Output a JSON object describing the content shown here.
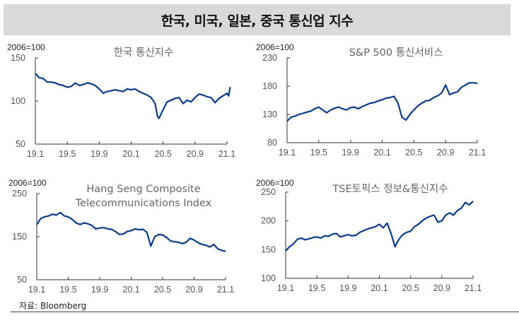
{
  "title": "한국, 미국, 일본, 중국 통신업 지수",
  "source": "자료: Bloomberg",
  "line_color": "#0b3a8c",
  "chart_data": [
    {
      "type": "line",
      "title": [
        "한국 통신지수"
      ],
      "unit_label": "2006=100",
      "xlabel": "",
      "ylabel": "",
      "xticks": [
        "19.1",
        "19.5",
        "19.9",
        "20.1",
        "20.5",
        "20.9",
        "21.1"
      ],
      "xtick_months": [
        0,
        4,
        8,
        12,
        16,
        20,
        24
      ],
      "yticks": [
        50,
        100,
        150
      ],
      "ylim": [
        50,
        150
      ],
      "x_months": [
        0,
        0.5,
        1,
        1.5,
        2,
        2.5,
        3,
        3.5,
        4,
        4.5,
        5,
        5.5,
        6,
        6.5,
        7,
        7.5,
        8,
        8.5,
        9,
        9.5,
        10,
        10.5,
        11,
        11.5,
        12,
        12.5,
        13,
        13.5,
        14,
        14.5,
        15,
        15.3,
        15.5,
        16,
        16.5,
        17,
        17.5,
        18,
        18.5,
        19,
        19.5,
        20,
        20.5,
        21,
        21.5,
        22,
        22.5,
        23,
        23.5,
        24,
        24.2,
        24.4
      ],
      "values": [
        132,
        127,
        126,
        122,
        122,
        121,
        119,
        118,
        116,
        117,
        121,
        118,
        119,
        121,
        120,
        118,
        114,
        109,
        111,
        112,
        113,
        112,
        111,
        114,
        113,
        114,
        111,
        109,
        107,
        104,
        97,
        82,
        80,
        90,
        99,
        101,
        103,
        104,
        97,
        101,
        99,
        104,
        108,
        107,
        105,
        104,
        98,
        103,
        106,
        109,
        106,
        116
      ]
    },
    {
      "type": "line",
      "title": [
        "S&P 500 통신서비스"
      ],
      "unit_label": "2006=100",
      "xlabel": "",
      "ylabel": "",
      "xticks": [
        "19.1",
        "19.5",
        "19.9",
        "20.1",
        "20.5",
        "20.9",
        "21.1"
      ],
      "xtick_months": [
        0,
        4,
        8,
        12,
        16,
        20,
        24
      ],
      "yticks": [
        80,
        130,
        180,
        230
      ],
      "ylim": [
        80,
        230
      ],
      "x_months": [
        0,
        0.5,
        1,
        1.5,
        2,
        2.5,
        3,
        3.5,
        4,
        4.5,
        5,
        5.5,
        6,
        6.5,
        7,
        7.5,
        8,
        8.5,
        9,
        9.5,
        10,
        10.5,
        11,
        11.5,
        12,
        12.5,
        13,
        13.5,
        14,
        14.5,
        15,
        15.5,
        16,
        16.5,
        17,
        17.5,
        18,
        18.5,
        19,
        19.5,
        20,
        20.5,
        21,
        21.5,
        22,
        22.5,
        23,
        23.5,
        24
      ],
      "values": [
        118,
        125,
        127,
        130,
        132,
        134,
        136,
        140,
        143,
        138,
        133,
        138,
        141,
        143,
        140,
        138,
        142,
        143,
        140,
        144,
        147,
        150,
        151,
        154,
        156,
        159,
        160,
        162,
        150,
        125,
        120,
        130,
        138,
        145,
        150,
        154,
        155,
        160,
        163,
        168,
        182,
        165,
        168,
        170,
        178,
        182,
        186,
        186,
        185
      ]
    },
    {
      "type": "line",
      "title": [
        "Hang Seng Composite",
        "Telecommunications Index"
      ],
      "unit_label": "2006=100",
      "xlabel": "",
      "ylabel": "",
      "xticks": [
        "19.1",
        "19.5",
        "19.9",
        "20.1",
        "20.5",
        "20.9",
        "21.1"
      ],
      "xtick_months": [
        0,
        4,
        8,
        12,
        16,
        20,
        24
      ],
      "yticks": [
        50,
        150,
        250
      ],
      "ylim": [
        50,
        250
      ],
      "x_months": [
        0,
        0.5,
        1,
        1.5,
        2,
        2.5,
        3,
        3.5,
        4,
        4.5,
        5,
        5.5,
        6,
        6.5,
        7,
        7.5,
        8,
        8.5,
        9,
        9.5,
        10,
        10.5,
        11,
        11.5,
        12,
        12.5,
        13,
        13.5,
        14,
        14.5,
        15,
        15.5,
        16,
        16.5,
        17,
        17.5,
        18,
        18.5,
        19,
        19.5,
        20,
        20.5,
        21,
        21.5,
        22,
        22.5,
        23,
        23.5,
        24
      ],
      "values": [
        178,
        192,
        196,
        198,
        202,
        200,
        206,
        198,
        196,
        190,
        182,
        178,
        182,
        180,
        176,
        168,
        170,
        171,
        168,
        167,
        162,
        155,
        156,
        162,
        164,
        168,
        166,
        167,
        160,
        128,
        150,
        155,
        154,
        148,
        140,
        138,
        137,
        134,
        137,
        146,
        142,
        136,
        132,
        130,
        126,
        132,
        122,
        118,
        116
      ]
    },
    {
      "type": "line",
      "title": [
        "TSE토픽스 정보&통신지수"
      ],
      "unit_label": "2006=100",
      "xlabel": "",
      "ylabel": "",
      "xticks": [
        "19.1",
        "19.5",
        "19.9",
        "20.1",
        "20.5",
        "20.9",
        "21.1"
      ],
      "xtick_months": [
        0,
        4,
        8,
        12,
        16,
        20,
        24
      ],
      "yticks": [
        100,
        150,
        200,
        250
      ],
      "ylim": [
        100,
        250
      ],
      "x_months": [
        0,
        0.5,
        1,
        1.5,
        2,
        2.5,
        3,
        3.5,
        4,
        4.5,
        5,
        5.5,
        6,
        6.5,
        7,
        7.5,
        8,
        8.5,
        9,
        9.5,
        10,
        10.5,
        11,
        11.5,
        12,
        12.5,
        13,
        13.5,
        14,
        14.5,
        15,
        15.5,
        16,
        16.5,
        17,
        17.5,
        18,
        18.5,
        19,
        19.5,
        20,
        20.5,
        21,
        21.5,
        22,
        22.5,
        23,
        23.5,
        24
      ],
      "values": [
        148,
        155,
        160,
        168,
        170,
        167,
        169,
        171,
        172,
        170,
        174,
        173,
        177,
        178,
        172,
        174,
        176,
        174,
        175,
        180,
        183,
        186,
        188,
        190,
        194,
        188,
        196,
        178,
        155,
        168,
        176,
        180,
        182,
        190,
        194,
        200,
        205,
        208,
        210,
        198,
        200,
        210,
        214,
        210,
        218,
        222,
        232,
        228,
        234
      ]
    }
  ]
}
